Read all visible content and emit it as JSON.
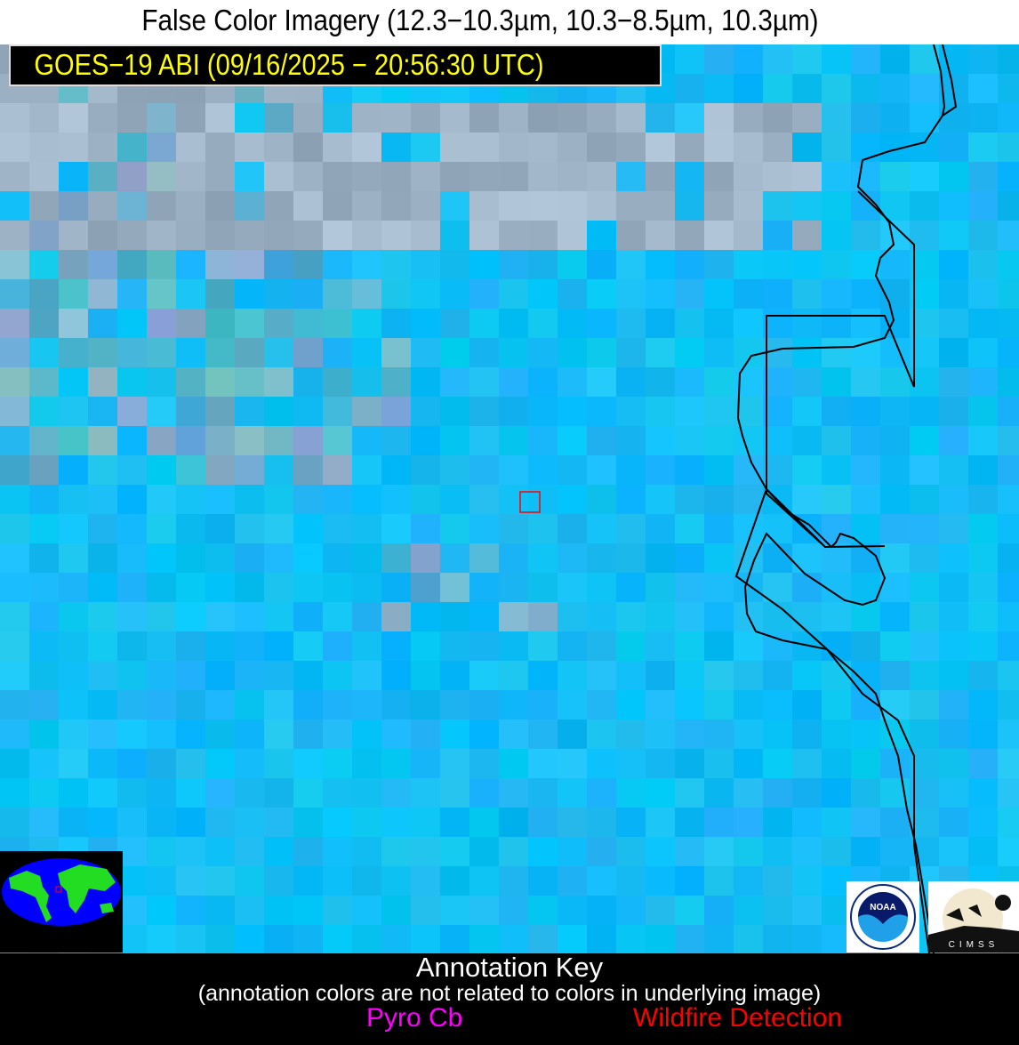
{
  "header": {
    "title": "False Color Imagery (12.3−10.3µm, 10.3−8.5µm, 10.3µm)"
  },
  "satellite_label": "GOES−19 ABI (09/16/2025 − 20:56:30 UTC)",
  "colors": {
    "background_blue": "#0fbff8",
    "label_text": "#ffff00",
    "pyro_cb": "#ff00ff",
    "wildfire_detection": "#ff0000",
    "boundary": "#000000"
  },
  "annotation_key": {
    "title": "Annotation Key",
    "note": "(annotation colors are not related to colors in underlying image)",
    "items": [
      {
        "label": "Pyro Cb"
      },
      {
        "label": "Wildfire Detection"
      }
    ]
  },
  "logos": {
    "noaa": "NOAA",
    "cimss": "CIMSS"
  }
}
